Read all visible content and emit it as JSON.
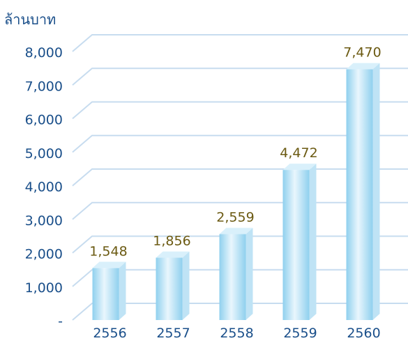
{
  "chart_data": {
    "type": "bar",
    "title": "",
    "ylabel": "ล้านบาท",
    "xlabel": "",
    "categories": [
      "2556",
      "2557",
      "2558",
      "2559",
      "2560"
    ],
    "values": [
      1548,
      1856,
      2559,
      4472,
      7470
    ],
    "value_labels": [
      "1,548",
      "1,856",
      "2,559",
      "4,472",
      "7,470"
    ],
    "ylim": [
      0,
      8000
    ],
    "yticks": [
      0,
      1000,
      2000,
      3000,
      4000,
      5000,
      6000,
      7000,
      8000
    ],
    "ytick_labels": [
      "-",
      "1,000",
      "2,000",
      "3,000",
      "4,000",
      "5,000",
      "6,000",
      "7,000",
      "8,000"
    ],
    "grid": true,
    "style": "3d-bar",
    "colors": {
      "axis_text": "#1a4f8a",
      "value_label": "#6b5a12",
      "grid": "#c7dcef",
      "bar_light": "#e9f6fd",
      "bar_dark": "#8fd0ee",
      "bar_side": "#bfe3f5",
      "bar_top": "#d9f0fb"
    }
  }
}
